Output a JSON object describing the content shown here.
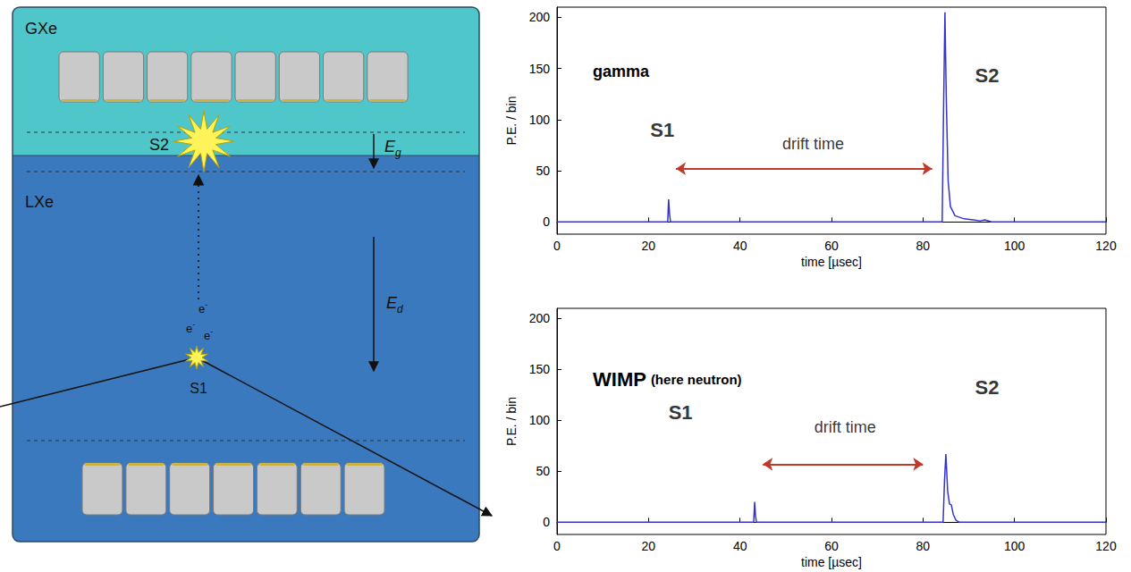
{
  "diagram": {
    "gas_label": "GXe",
    "liquid_label": "LXe",
    "s2_label": "S2",
    "s1_label": "S1",
    "gas_field": {
      "symbol": "E",
      "subscript": "g"
    },
    "drift_field": {
      "symbol": "E",
      "subscript": "d"
    },
    "electron": {
      "symbol": "e",
      "superscript": "-"
    },
    "electrons_shown": 3,
    "top_pmts": 8,
    "bottom_pmts": 7
  },
  "chart_data": [
    {
      "type": "line",
      "title": "gamma",
      "x_label": "time [µsec]",
      "y_label": "P.E. / bin",
      "xlim": [
        0,
        120
      ],
      "xticks": [
        0,
        20,
        40,
        60,
        80,
        100,
        120
      ],
      "ylim": [
        -12,
        210
      ],
      "yticks": [
        0,
        50,
        100,
        150,
        200
      ],
      "grid": false,
      "color": "#3434c8",
      "x": [
        0,
        24.2,
        24.4,
        24.6,
        24.8,
        84.2,
        84.5,
        84.8,
        85.1,
        85.5,
        86.0,
        87.0,
        89.0,
        91.0,
        92.5,
        93.5,
        95.0,
        120
      ],
      "values": [
        0,
        0,
        22,
        8,
        0,
        0,
        110,
        205,
        120,
        40,
        15,
        6,
        3,
        2,
        1,
        2,
        0,
        0
      ],
      "annotations": [
        {
          "text": "S1",
          "x": 23,
          "y": 90
        },
        {
          "text": "S2",
          "x": 94,
          "y": 143
        },
        {
          "text": "drift time",
          "x": 56,
          "y": 76,
          "arrow": {
            "from": 26,
            "to": 82,
            "y": 52
          }
        }
      ]
    },
    {
      "type": "line",
      "title": "WIMP",
      "subtitle": "(here neutron)",
      "x_label": "time [µsec]",
      "y_label": "P.E. / bin",
      "xlim": [
        0,
        120
      ],
      "xticks": [
        0,
        20,
        40,
        60,
        80,
        100,
        120
      ],
      "ylim": [
        -12,
        210
      ],
      "yticks": [
        0,
        50,
        100,
        150,
        200
      ],
      "grid": false,
      "color": "#3434c8",
      "x": [
        0,
        43.0,
        43.2,
        43.4,
        43.6,
        84.4,
        84.7,
        85.0,
        85.4,
        85.8,
        86.2,
        86.6,
        87.2,
        88.0,
        120
      ],
      "values": [
        0,
        0,
        20,
        6,
        0,
        0,
        40,
        67,
        30,
        18,
        17,
        8,
        2,
        0,
        0
      ],
      "annotations": [
        {
          "text": "S1",
          "x": 27,
          "y": 108
        },
        {
          "text": "S2",
          "x": 94,
          "y": 132
        },
        {
          "text": "drift time",
          "x": 63,
          "y": 93,
          "arrow": {
            "from": 45,
            "to": 80,
            "y": 57
          }
        }
      ]
    }
  ]
}
